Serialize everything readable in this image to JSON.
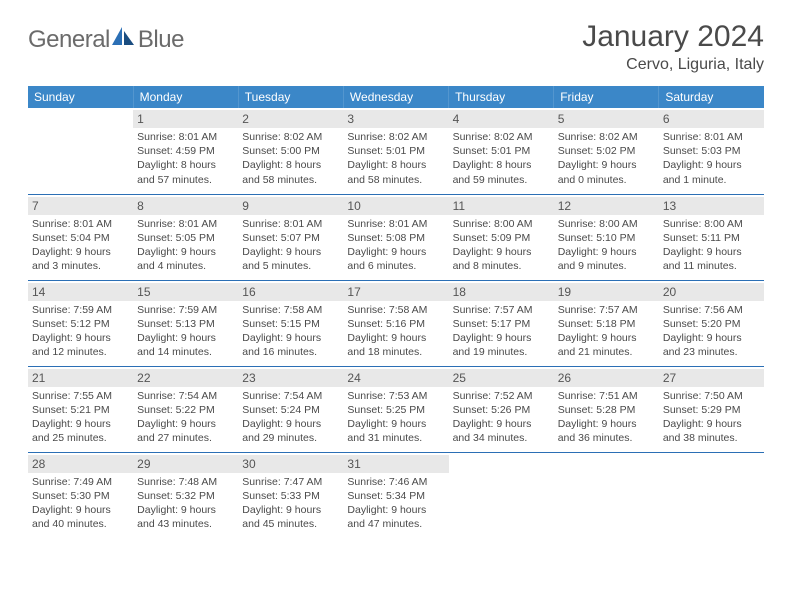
{
  "brand": {
    "left": "General",
    "right": "Blue"
  },
  "title": "January 2024",
  "location": "Cervo, Liguria, Italy",
  "colors": {
    "header_bg": "#3b87c8",
    "border": "#2b6fb5",
    "daynum_bg": "#e8e8e8",
    "text": "#4a4a4a"
  },
  "day_names": [
    "Sunday",
    "Monday",
    "Tuesday",
    "Wednesday",
    "Thursday",
    "Friday",
    "Saturday"
  ],
  "weeks": [
    [
      null,
      {
        "n": "1",
        "r": "Sunrise: 8:01 AM",
        "s": "Sunset: 4:59 PM",
        "d1": "Daylight: 8 hours",
        "d2": "and 57 minutes."
      },
      {
        "n": "2",
        "r": "Sunrise: 8:02 AM",
        "s": "Sunset: 5:00 PM",
        "d1": "Daylight: 8 hours",
        "d2": "and 58 minutes."
      },
      {
        "n": "3",
        "r": "Sunrise: 8:02 AM",
        "s": "Sunset: 5:01 PM",
        "d1": "Daylight: 8 hours",
        "d2": "and 58 minutes."
      },
      {
        "n": "4",
        "r": "Sunrise: 8:02 AM",
        "s": "Sunset: 5:01 PM",
        "d1": "Daylight: 8 hours",
        "d2": "and 59 minutes."
      },
      {
        "n": "5",
        "r": "Sunrise: 8:02 AM",
        "s": "Sunset: 5:02 PM",
        "d1": "Daylight: 9 hours",
        "d2": "and 0 minutes."
      },
      {
        "n": "6",
        "r": "Sunrise: 8:01 AM",
        "s": "Sunset: 5:03 PM",
        "d1": "Daylight: 9 hours",
        "d2": "and 1 minute."
      }
    ],
    [
      {
        "n": "7",
        "r": "Sunrise: 8:01 AM",
        "s": "Sunset: 5:04 PM",
        "d1": "Daylight: 9 hours",
        "d2": "and 3 minutes."
      },
      {
        "n": "8",
        "r": "Sunrise: 8:01 AM",
        "s": "Sunset: 5:05 PM",
        "d1": "Daylight: 9 hours",
        "d2": "and 4 minutes."
      },
      {
        "n": "9",
        "r": "Sunrise: 8:01 AM",
        "s": "Sunset: 5:07 PM",
        "d1": "Daylight: 9 hours",
        "d2": "and 5 minutes."
      },
      {
        "n": "10",
        "r": "Sunrise: 8:01 AM",
        "s": "Sunset: 5:08 PM",
        "d1": "Daylight: 9 hours",
        "d2": "and 6 minutes."
      },
      {
        "n": "11",
        "r": "Sunrise: 8:00 AM",
        "s": "Sunset: 5:09 PM",
        "d1": "Daylight: 9 hours",
        "d2": "and 8 minutes."
      },
      {
        "n": "12",
        "r": "Sunrise: 8:00 AM",
        "s": "Sunset: 5:10 PM",
        "d1": "Daylight: 9 hours",
        "d2": "and 9 minutes."
      },
      {
        "n": "13",
        "r": "Sunrise: 8:00 AM",
        "s": "Sunset: 5:11 PM",
        "d1": "Daylight: 9 hours",
        "d2": "and 11 minutes."
      }
    ],
    [
      {
        "n": "14",
        "r": "Sunrise: 7:59 AM",
        "s": "Sunset: 5:12 PM",
        "d1": "Daylight: 9 hours",
        "d2": "and 12 minutes."
      },
      {
        "n": "15",
        "r": "Sunrise: 7:59 AM",
        "s": "Sunset: 5:13 PM",
        "d1": "Daylight: 9 hours",
        "d2": "and 14 minutes."
      },
      {
        "n": "16",
        "r": "Sunrise: 7:58 AM",
        "s": "Sunset: 5:15 PM",
        "d1": "Daylight: 9 hours",
        "d2": "and 16 minutes."
      },
      {
        "n": "17",
        "r": "Sunrise: 7:58 AM",
        "s": "Sunset: 5:16 PM",
        "d1": "Daylight: 9 hours",
        "d2": "and 18 minutes."
      },
      {
        "n": "18",
        "r": "Sunrise: 7:57 AM",
        "s": "Sunset: 5:17 PM",
        "d1": "Daylight: 9 hours",
        "d2": "and 19 minutes."
      },
      {
        "n": "19",
        "r": "Sunrise: 7:57 AM",
        "s": "Sunset: 5:18 PM",
        "d1": "Daylight: 9 hours",
        "d2": "and 21 minutes."
      },
      {
        "n": "20",
        "r": "Sunrise: 7:56 AM",
        "s": "Sunset: 5:20 PM",
        "d1": "Daylight: 9 hours",
        "d2": "and 23 minutes."
      }
    ],
    [
      {
        "n": "21",
        "r": "Sunrise: 7:55 AM",
        "s": "Sunset: 5:21 PM",
        "d1": "Daylight: 9 hours",
        "d2": "and 25 minutes."
      },
      {
        "n": "22",
        "r": "Sunrise: 7:54 AM",
        "s": "Sunset: 5:22 PM",
        "d1": "Daylight: 9 hours",
        "d2": "and 27 minutes."
      },
      {
        "n": "23",
        "r": "Sunrise: 7:54 AM",
        "s": "Sunset: 5:24 PM",
        "d1": "Daylight: 9 hours",
        "d2": "and 29 minutes."
      },
      {
        "n": "24",
        "r": "Sunrise: 7:53 AM",
        "s": "Sunset: 5:25 PM",
        "d1": "Daylight: 9 hours",
        "d2": "and 31 minutes."
      },
      {
        "n": "25",
        "r": "Sunrise: 7:52 AM",
        "s": "Sunset: 5:26 PM",
        "d1": "Daylight: 9 hours",
        "d2": "and 34 minutes."
      },
      {
        "n": "26",
        "r": "Sunrise: 7:51 AM",
        "s": "Sunset: 5:28 PM",
        "d1": "Daylight: 9 hours",
        "d2": "and 36 minutes."
      },
      {
        "n": "27",
        "r": "Sunrise: 7:50 AM",
        "s": "Sunset: 5:29 PM",
        "d1": "Daylight: 9 hours",
        "d2": "and 38 minutes."
      }
    ],
    [
      {
        "n": "28",
        "r": "Sunrise: 7:49 AM",
        "s": "Sunset: 5:30 PM",
        "d1": "Daylight: 9 hours",
        "d2": "and 40 minutes."
      },
      {
        "n": "29",
        "r": "Sunrise: 7:48 AM",
        "s": "Sunset: 5:32 PM",
        "d1": "Daylight: 9 hours",
        "d2": "and 43 minutes."
      },
      {
        "n": "30",
        "r": "Sunrise: 7:47 AM",
        "s": "Sunset: 5:33 PM",
        "d1": "Daylight: 9 hours",
        "d2": "and 45 minutes."
      },
      {
        "n": "31",
        "r": "Sunrise: 7:46 AM",
        "s": "Sunset: 5:34 PM",
        "d1": "Daylight: 9 hours",
        "d2": "and 47 minutes."
      },
      null,
      null,
      null
    ]
  ]
}
